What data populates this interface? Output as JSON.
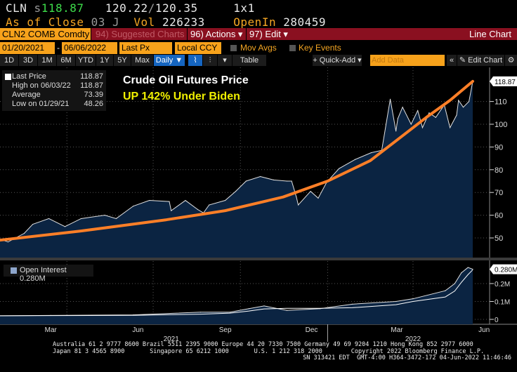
{
  "header": {
    "ticker": "CLN",
    "price_prefix": "s",
    "last": "118.87",
    "bid": "120.22",
    "sep": "/",
    "ask": "120.35",
    "size": "1x1",
    "asof_label": "As of Close",
    "asof_value": "03 J",
    "vol_label": "Vol",
    "vol_value": "226233",
    "oi_label": "OpenIn",
    "oi_value": "280459"
  },
  "toolbar": {
    "security": "CLN2 COMB Comdty",
    "suggested": "94) Suggested Charts",
    "actions": "96) Actions ▾",
    "edit": "97) Edit ▾",
    "chart_type": "Line Chart",
    "start_date": "01/20/2021",
    "dash": "-",
    "end_date": "06/06/2022",
    "field": "Last Px",
    "currency": "Local CCY",
    "mov_avgs": "Mov Avgs",
    "key_events": "Key Events",
    "periods": [
      "1D",
      "3D",
      "1M",
      "6M",
      "YTD",
      "1Y",
      "5Y",
      "Max"
    ],
    "frequency": "Daily ▼",
    "table": "Table",
    "quick_add": "+ Quick-Add ▾",
    "add_data_placeholder": "Add Data",
    "edit_chart": "Edit Chart",
    "collapse": "«"
  },
  "legend": {
    "last_label": "Last Price",
    "last_value": "118.87",
    "high_label": "High on 06/03/22",
    "high_value": "118.87",
    "avg_label": "Average",
    "avg_value": "73.39",
    "low_label": "Low on 01/29/21",
    "low_value": "48.26"
  },
  "annotation": {
    "title": "Crude Oil Futures Price",
    "subtitle": "UP 142% Under Biden"
  },
  "oi_legend": "Open Interest 0.280M",
  "colors": {
    "fill": "#0b2442",
    "trend": "#ff7f27",
    "line": "#e0e0e0",
    "bar": "#8a1020",
    "orange": "#f7a21b",
    "green": "#3ddc4a"
  },
  "chart_data": [
    {
      "type": "area",
      "ylim": [
        45,
        122
      ],
      "yticks": [
        50,
        60,
        70,
        80,
        90,
        100,
        110
      ],
      "last_label": "118.87",
      "series": [
        {
          "name": "Last Price",
          "x": [
            "2021-01-20",
            "2021-01-29",
            "2021-02-15",
            "2021-02-24",
            "2021-03-13",
            "2021-03-30",
            "2021-04-16",
            "2021-05-11",
            "2021-05-23",
            "2021-06-10",
            "2021-06-27",
            "2021-07-18",
            "2021-07-20",
            "2021-08-04",
            "2021-08-17",
            "2021-08-23",
            "2021-08-29",
            "2021-09-15",
            "2021-09-26",
            "2021-10-07",
            "2021-10-22",
            "2021-11-05",
            "2021-11-19",
            "2021-11-24",
            "2021-11-29",
            "2021-12-01",
            "2021-12-14",
            "2021-12-22",
            "2021-12-31",
            "2022-01-13",
            "2022-01-30",
            "2022-02-16",
            "2022-02-27",
            "2022-03-08",
            "2022-03-14",
            "2022-03-16",
            "2022-03-21",
            "2022-03-30",
            "2022-04-06",
            "2022-04-11",
            "2022-04-18",
            "2022-04-25",
            "2022-05-04",
            "2022-05-10",
            "2022-05-17",
            "2022-05-19",
            "2022-05-24",
            "2022-05-30",
            "2022-06-03"
          ],
          "y": [
            49.5,
            48.26,
            52,
            56,
            58.5,
            55,
            58.5,
            60,
            58.5,
            64,
            66.5,
            66,
            62,
            66.5,
            62.5,
            61,
            64.5,
            66.5,
            70.5,
            75,
            77,
            75.5,
            75,
            75,
            68,
            64.5,
            70.5,
            67.5,
            74.5,
            80.5,
            84.5,
            87.5,
            88.5,
            111,
            97,
            102.5,
            107.5,
            100,
            106,
            98.5,
            105,
            103,
            108.5,
            98.5,
            104,
            110.5,
            107.5,
            110,
            118.87
          ]
        },
        {
          "x": [
            "2021-01-20",
            "2021-04-15",
            "2021-07-15",
            "2021-09-15",
            "2021-11-15",
            "2022-01-01",
            "2022-02-15",
            "2022-03-15",
            "2022-04-15",
            "2022-05-10",
            "2022-06-03"
          ],
          "y": [
            49,
            53,
            58,
            62,
            68,
            75,
            84,
            93,
            103,
            110.5,
            118.87
          ]
        }
      ]
    },
    {
      "type": "area",
      "ylim": [
        -0.02,
        0.3
      ],
      "yticks": [
        0,
        0.1,
        0.2
      ],
      "ytick_labels": [
        "0",
        "0.1M",
        "0.2M"
      ],
      "last_label": "0.280M",
      "series": [
        {
          "name": "Open Interest",
          "x": [
            "2021-01-20",
            "2021-03-15",
            "2021-06-10",
            "2021-08-20",
            "2021-09-20",
            "2021-10-10",
            "2021-10-26",
            "2021-11-19",
            "2021-12-24",
            "2022-01-27",
            "2022-03-14",
            "2022-04-01",
            "2022-05-05",
            "2022-05-15",
            "2022-05-22",
            "2022-05-29",
            "2022-06-03"
          ],
          "y": [
            0.02,
            0.022,
            0.025,
            0.04,
            0.04,
            0.06,
            0.075,
            0.05,
            0.06,
            0.085,
            0.1,
            0.115,
            0.16,
            0.2,
            0.26,
            0.29,
            0.28
          ]
        }
      ]
    }
  ],
  "xaxis": {
    "months": [
      "Mar",
      "Jun",
      "Sep",
      "Dec",
      "Mar",
      "Jun"
    ],
    "years": [
      "2021",
      "2022"
    ]
  },
  "footer": {
    "line1": "Australia 61 2 9777 8600 Brazil 5511 2395 9000 Europe 44 20 7330 7500 Germany 49 69 9204 1210 Hong Kong 852 2977 6000",
    "line2": "Japan 81 3 4565 8900       Singapore 65 6212 1000       U.S. 1 212 318 2000        Copyright 2022 Bloomberg Finance L.P.",
    "line3": "SN 313421 EDT  GMT-4:00 H364-3472-172 04-Jun-2022 11:46:46"
  }
}
